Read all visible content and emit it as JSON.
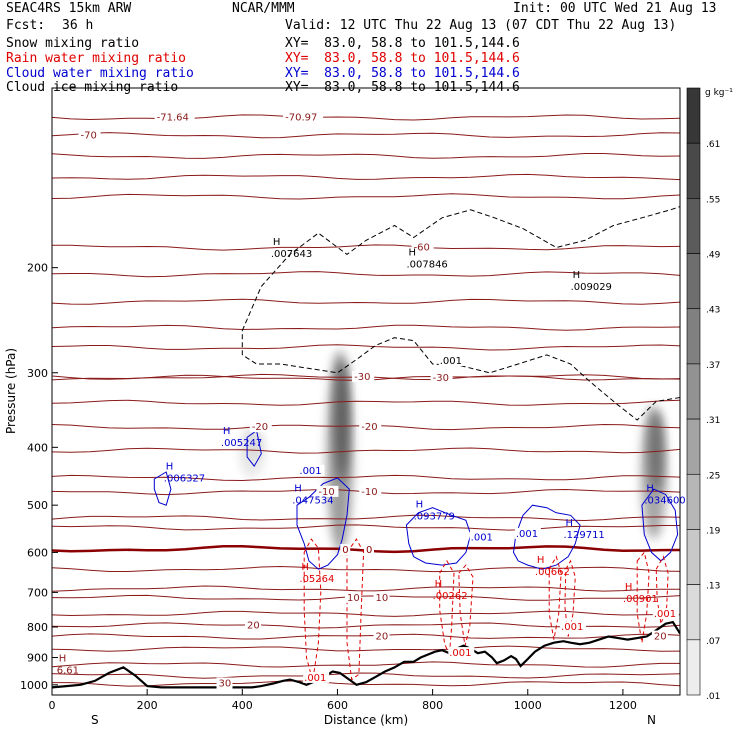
{
  "header": {
    "model": "SEAC4RS 15km ARW",
    "center": "NCAR/MMM",
    "init": "Init: 00 UTC Wed 21 Aug 13",
    "fcst_label": "Fcst:",
    "fcst_value": "36 h",
    "valid": "Valid: 12 UTC Thu 22 Aug 13 (07 CDT Thu 22 Aug 13)"
  },
  "fields": [
    {
      "name": "Snow mixing ratio",
      "xy": "",
      "color": "#000000"
    },
    {
      "name": "Rain water mixing ratio",
      "xy": "XY=  83.0, 58.8 to 101.5,144.6",
      "color": "#e00000"
    },
    {
      "name": "Cloud water mixing ratio",
      "xy": "XY=  83.0, 58.8 to 101.5,144.6",
      "color": "#0000d0"
    },
    {
      "name": "Cloud ice mixing ratio",
      "xy": "XY=  83.0, 58.8 to 101.5,144.6",
      "color": "#000000"
    }
  ],
  "snow_xy": "XY=  83.0, 58.8 to 101.5,144.6",
  "colors": {
    "temperature": "#8b1a1a",
    "zero_isotherm": "#8b0000",
    "rain": "#e00000",
    "cloud": "#0000d0",
    "ice": "#000000",
    "terrain": "#000000"
  },
  "chart_data": {
    "type": "cross-section",
    "xlabel": "Distance (km)",
    "ylabel": "Pressure (hPa)",
    "xlim": [
      0,
      1320
    ],
    "ylim": [
      1040,
      100
    ],
    "y_scale": "log",
    "x_ticks": [
      0,
      200,
      400,
      600,
      800,
      1000,
      1200
    ],
    "y_ticks": [
      200,
      300,
      400,
      500,
      600,
      700,
      800,
      900,
      1000
    ],
    "endpoint_left": "S",
    "endpoint_right": "N",
    "colorbar": {
      "unit": "g kg⁻¹",
      "ticks": [
        ".61",
        ".55",
        ".49",
        ".43",
        ".37",
        ".31",
        ".25",
        ".19",
        ".13",
        ".07",
        ".01"
      ],
      "values": [
        0.61,
        0.55,
        0.49,
        0.43,
        0.37,
        0.31,
        0.25,
        0.19,
        0.13,
        0.07,
        0.01
      ],
      "max": 0.67
    },
    "temperature_levels": [
      {
        "p": 112,
        "label": "-71.64",
        "x": 220
      },
      {
        "p": 112,
        "label": "-70.97",
        "x": 490
      },
      {
        "p": 120,
        "label": "-70",
        "x": 60
      },
      {
        "p": 130
      },
      {
        "p": 141
      },
      {
        "p": 152
      },
      {
        "p": 185,
        "label": "-60",
        "x": 760
      },
      {
        "p": 205
      },
      {
        "p": 228
      },
      {
        "p": 252
      },
      {
        "p": 272
      },
      {
        "p": 305,
        "label": "-30",
        "x": 635
      },
      {
        "p": 306,
        "label": "-30",
        "x": 800
      },
      {
        "p": 337
      },
      {
        "p": 370,
        "label": "-20",
        "x": 420
      },
      {
        "p": 370,
        "label": "-20",
        "x": 650
      },
      {
        "p": 405
      },
      {
        "p": 450
      },
      {
        "p": 475,
        "label": "-10",
        "x": 560
      },
      {
        "p": 475,
        "label": "-10",
        "x": 650
      },
      {
        "p": 525
      },
      {
        "p": 545
      },
      {
        "p": 640
      },
      {
        "p": 690
      },
      {
        "p": 715,
        "label": "10",
        "x": 620
      },
      {
        "p": 715,
        "label": "10",
        "x": 680
      },
      {
        "p": 760
      },
      {
        "p": 795,
        "label": "20",
        "x": 410
      },
      {
        "p": 830,
        "label": "20",
        "x": 680
      },
      {
        "p": 830,
        "label": "20",
        "x": 1265
      },
      {
        "p": 870
      },
      {
        "p": 925
      },
      {
        "p": 965
      },
      {
        "p": 995,
        "label": "30",
        "x": 350
      }
    ],
    "zero_isotherm": {
      "p": 592,
      "labels": [
        {
          "x": 610,
          "text": "0"
        },
        {
          "x": 660,
          "text": "0"
        }
      ]
    },
    "max_labels": [
      {
        "field": "ice",
        "x": 460,
        "p": 192,
        "value": ".007643"
      },
      {
        "field": "ice",
        "x": 745,
        "p": 200,
        "value": ".007846"
      },
      {
        "field": "ice",
        "x": 1090,
        "p": 218,
        "value": ".009029"
      },
      {
        "field": "cloud",
        "x": 355,
        "p": 398,
        "value": ".005247"
      },
      {
        "field": "cloud",
        "x": 235,
        "p": 456,
        "value": ".006327"
      },
      {
        "field": "cloud",
        "x": 505,
        "p": 497,
        "value": ".047534"
      },
      {
        "field": "cloud",
        "x": 760,
        "p": 528,
        "value": ".093779"
      },
      {
        "field": "cloud",
        "x": 1075,
        "p": 568,
        "value": ".129711"
      },
      {
        "field": "cloud",
        "x": 1245,
        "p": 497,
        "value": ".034600"
      },
      {
        "field": "rain",
        "x": 520,
        "p": 673,
        "value": ".05264"
      },
      {
        "field": "rain",
        "x": 800,
        "p": 718,
        "value": ".00262"
      },
      {
        "field": "rain",
        "x": 1015,
        "p": 655,
        "value": ".00662"
      },
      {
        "field": "rain",
        "x": 1200,
        "p": 727,
        "value": ".00901"
      },
      {
        "field": "temperature",
        "x": 10,
        "p": 958,
        "value": "6.61"
      }
    ],
    "contour_labels": [
      {
        "field": "ice",
        "x": 815,
        "p": 290,
        "text": ".001"
      },
      {
        "field": "cloud",
        "x": 520,
        "p": 443,
        "text": ".001"
      },
      {
        "field": "cloud",
        "x": 880,
        "p": 573,
        "text": ".001"
      },
      {
        "field": "cloud",
        "x": 975,
        "p": 565,
        "text": ".001"
      },
      {
        "field": "rain",
        "x": 530,
        "p": 985,
        "text": ".001"
      },
      {
        "field": "rain",
        "x": 835,
        "p": 895,
        "text": ".001"
      },
      {
        "field": "rain",
        "x": 1070,
        "p": 810,
        "text": ".001"
      },
      {
        "field": "rain",
        "x": 1265,
        "p": 770,
        "text": ".001"
      }
    ],
    "shading_plumes": [
      {
        "x": 605,
        "p_top": 275,
        "p_bottom": 600,
        "peak": 0.55
      },
      {
        "x": 1265,
        "p_top": 340,
        "p_bottom": 570,
        "peak": 0.49
      },
      {
        "x": 420,
        "p_top": 370,
        "p_bottom": 450,
        "peak": 0.13
      }
    ],
    "terrain": [
      [
        0,
        1010
      ],
      [
        30,
        1005
      ],
      [
        60,
        1000
      ],
      [
        90,
        985
      ],
      [
        120,
        955
      ],
      [
        150,
        935
      ],
      [
        175,
        965
      ],
      [
        200,
        1005
      ],
      [
        230,
        1010
      ],
      [
        260,
        1010
      ],
      [
        300,
        1010
      ],
      [
        340,
        1010
      ],
      [
        380,
        1010
      ],
      [
        420,
        1010
      ],
      [
        440,
        1005
      ],
      [
        465,
        995
      ],
      [
        485,
        985
      ],
      [
        500,
        980
      ],
      [
        520,
        990
      ],
      [
        535,
        1000
      ],
      [
        555,
        985
      ],
      [
        575,
        965
      ],
      [
        590,
        950
      ],
      [
        605,
        955
      ],
      [
        625,
        980
      ],
      [
        640,
        1000
      ],
      [
        660,
        990
      ],
      [
        680,
        970
      ],
      [
        700,
        950
      ],
      [
        720,
        935
      ],
      [
        740,
        915
      ],
      [
        760,
        915
      ],
      [
        775,
        900
      ],
      [
        790,
        890
      ],
      [
        805,
        880
      ],
      [
        820,
        875
      ],
      [
        835,
        885
      ],
      [
        850,
        870
      ],
      [
        865,
        860
      ],
      [
        880,
        870
      ],
      [
        895,
        885
      ],
      [
        910,
        880
      ],
      [
        925,
        900
      ],
      [
        935,
        920
      ],
      [
        950,
        910
      ],
      [
        965,
        895
      ],
      [
        975,
        905
      ],
      [
        985,
        930
      ],
      [
        1000,
        905
      ],
      [
        1015,
        880
      ],
      [
        1035,
        860
      ],
      [
        1055,
        850
      ],
      [
        1075,
        845
      ],
      [
        1090,
        850
      ],
      [
        1110,
        855
      ],
      [
        1130,
        850
      ],
      [
        1150,
        840
      ],
      [
        1170,
        830
      ],
      [
        1190,
        835
      ],
      [
        1210,
        840
      ],
      [
        1230,
        835
      ],
      [
        1250,
        830
      ],
      [
        1270,
        810
      ],
      [
        1290,
        790
      ],
      [
        1305,
        785
      ],
      [
        1320,
        820
      ]
    ]
  }
}
